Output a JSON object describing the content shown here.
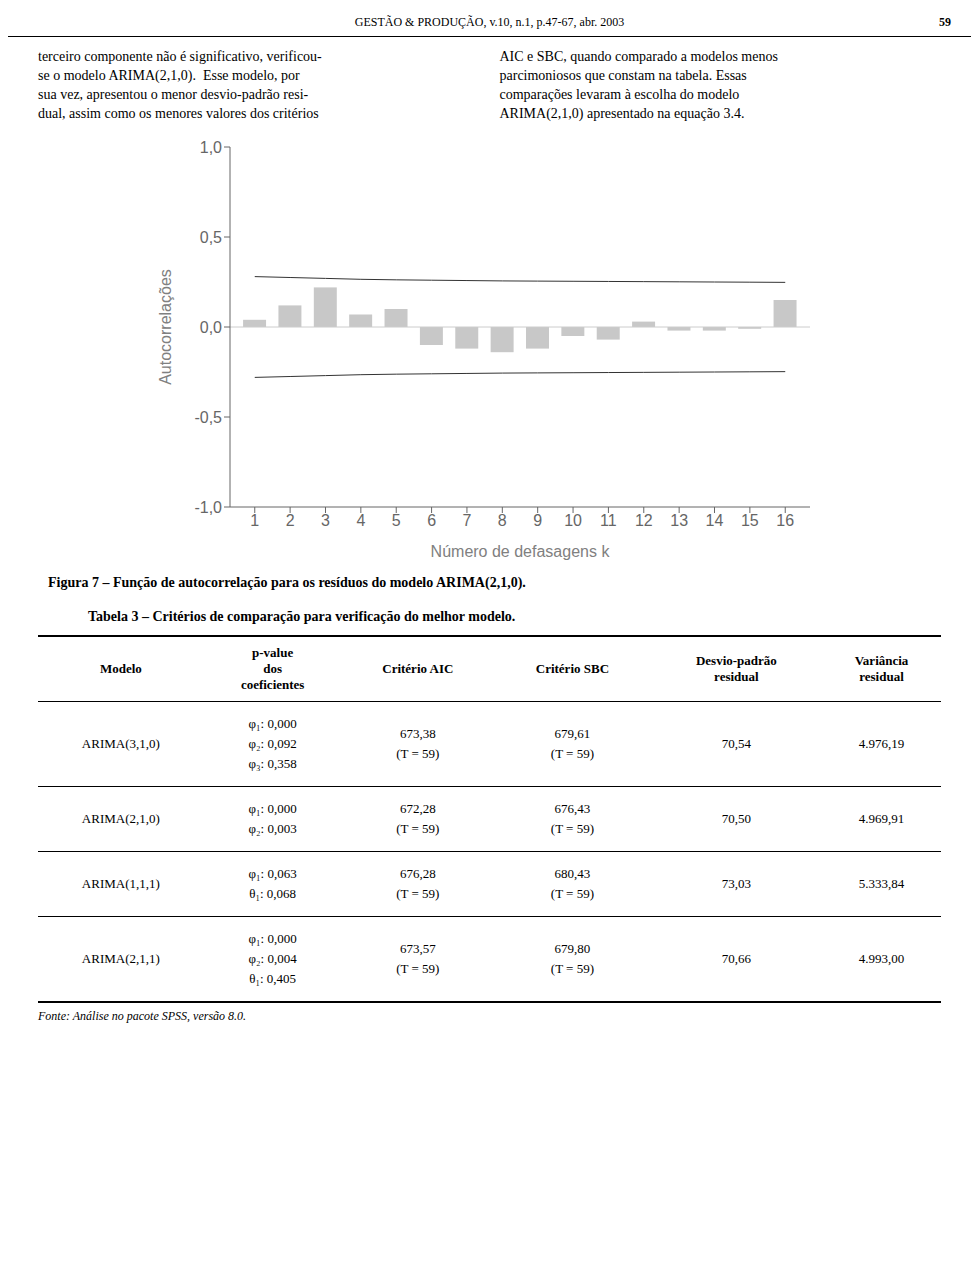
{
  "chart_data": {
    "type": "bar",
    "title": "Figura 7 – Função de autocorrelação para os resíduos do modelo ARIMA(2,1,0).",
    "xlabel": "Número de defasagens k",
    "ylabel": "Autocorrelações",
    "x": [
      1,
      2,
      3,
      4,
      5,
      6,
      7,
      8,
      9,
      10,
      11,
      12,
      13,
      14,
      15,
      16
    ],
    "series": [
      {
        "type": "bar",
        "color": "#c8c8c8",
        "values": [
          0.04,
          0.12,
          0.22,
          0.07,
          0.1,
          -0.1,
          -0.12,
          -0.14,
          -0.12,
          -0.05,
          -0.07,
          0.03,
          -0.02,
          -0.02,
          -0.01,
          0.15
        ]
      },
      {
        "type": "line",
        "color": "#333333",
        "values": [
          0.28,
          0.275,
          0.27,
          0.265,
          0.262,
          0.26,
          0.258,
          0.256,
          0.255,
          0.254,
          0.253,
          0.252,
          0.251,
          0.25,
          0.249,
          0.248
        ]
      },
      {
        "type": "line",
        "color": "#333333",
        "values": [
          -0.28,
          -0.275,
          -0.27,
          -0.265,
          -0.262,
          -0.26,
          -0.258,
          -0.256,
          -0.255,
          -0.254,
          -0.253,
          -0.252,
          -0.251,
          -0.25,
          -0.249,
          -0.248
        ]
      }
    ],
    "xlim": [
      0.3,
      16.7
    ],
    "xticks": [
      1,
      2,
      3,
      4,
      5,
      6,
      7,
      8,
      9,
      10,
      11,
      12,
      13,
      14,
      15,
      16
    ],
    "ylim": [
      -1.0,
      1.0
    ],
    "yticks": [
      {
        "value": -1.0,
        "label": "-1,0"
      },
      {
        "value": -0.5,
        "label": "-0,5"
      },
      {
        "value": 0.0,
        "label": "0,0"
      },
      {
        "value": 0.5,
        "label": "0,5"
      },
      {
        "value": 1.0,
        "label": "1,0"
      }
    ],
    "grid": false,
    "annotations": {
      "page_header": "GESTÃO & PRODUÇÃO, v.10, n.1, p.47-67, abr. 2003",
      "page_number": "59",
      "text_left_lines": [
        "terceiro componente não é significativo, verificou-",
        "se o modelo ARIMA(2,1,0).  Esse modelo, por",
        "sua vez, apresentou o menor desvio-padrão resi-",
        "dual, assim como os menores valores dos critérios"
      ],
      "text_right_lines": [
        "AIC e SBC, quando comparado a modelos menos",
        "parcimoniosos que constam na tabela. Essas",
        "comparações levaram à escolha do modelo",
        "ARIMA(2,1,0) apresentado na equação 3.4."
      ]
    },
    "table": {
      "title": "Tabela 3 – Critérios de comparação para verificação do melhor modelo.",
      "header": [
        [
          "Modelo"
        ],
        [
          "p-value",
          "dos",
          "coeficientes"
        ],
        [
          "Critério AIC"
        ],
        [
          "Critério SBC"
        ],
        [
          "Desvio-padrão",
          "residual"
        ],
        [
          "Variância",
          "residual"
        ]
      ],
      "rows": [
        [
          [
            "ARIMA(3,1,0)"
          ],
          [
            "φ₁: 0,000",
            "φ₂: 0,092",
            "φ₃: 0,358"
          ],
          [
            "673,38",
            "(T = 59)"
          ],
          [
            "679,61",
            "(T = 59)"
          ],
          [
            "70,54"
          ],
          [
            "4.976,19"
          ]
        ],
        [
          [
            "ARIMA(2,1,0)"
          ],
          [
            "φ₁: 0,000",
            "φ₂: 0,003"
          ],
          [
            "672,28",
            "(T = 59)"
          ],
          [
            "676,43",
            "(T = 59)"
          ],
          [
            "70,50"
          ],
          [
            "4.969,91"
          ]
        ],
        [
          [
            "ARIMA(1,1,1)"
          ],
          [
            "φ₁: 0,063",
            "θ₁: 0,068"
          ],
          [
            "676,28",
            "(T = 59)"
          ],
          [
            "680,43",
            "(T = 59)"
          ],
          [
            "73,03"
          ],
          [
            "5.333,84"
          ]
        ],
        [
          [
            "ARIMA(2,1,1)"
          ],
          [
            "φ₁: 0,000",
            "φ₂: 0,004",
            "θ₁: 0,405"
          ],
          [
            "673,57",
            "(T = 59)"
          ],
          [
            "679,80",
            "(T = 59)"
          ],
          [
            "70,66"
          ],
          [
            "4.993,00"
          ]
        ]
      ],
      "footer": "Fonte: Análise no pacote SPSS, versão 8.0."
    }
  }
}
